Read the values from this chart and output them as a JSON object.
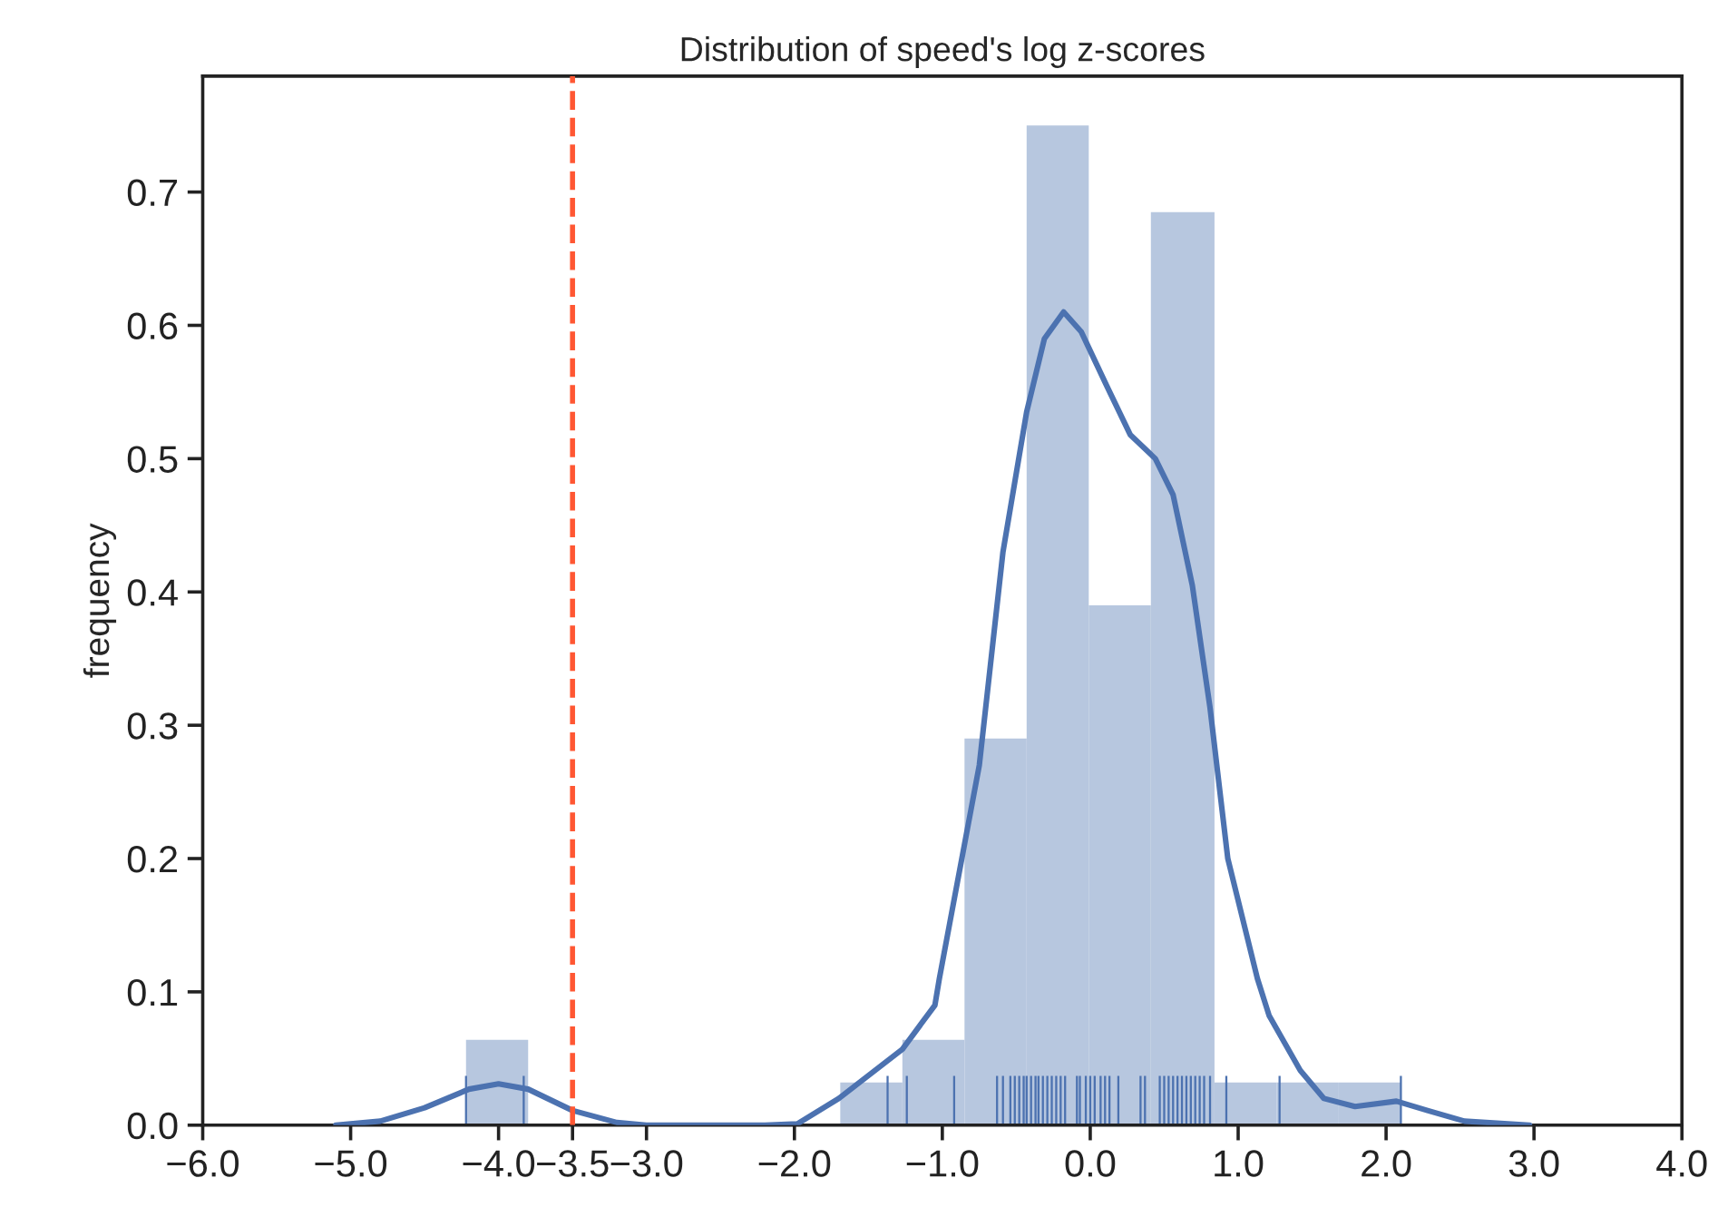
{
  "chart_data": {
    "type": "histogram",
    "title": "Distribution of speed's log z-scores",
    "ylabel": "frequency",
    "bins": [
      -4.22,
      -3.8,
      -1.69,
      -1.27,
      -0.85,
      -0.43,
      -0.01,
      0.41,
      0.84,
      1.26,
      1.68,
      2.1
    ],
    "values": [
      0.064,
      0,
      0.032,
      0.064,
      0.29,
      0.75,
      0.39,
      0.685,
      0.032,
      0.032,
      0.032
    ],
    "color": "#b7c7df",
    "series": [
      {
        "type": "line",
        "color": "#4c72b0",
        "x": [
          -5.1,
          -4.8,
          -4.5,
          -4.2,
          -4.0,
          -3.8,
          -3.5,
          -3.2,
          -3.0,
          -2.2,
          -1.98,
          -1.7,
          -1.27,
          -1.05,
          -1.02,
          -0.75,
          -0.59,
          -0.43,
          -0.31,
          -0.18,
          -0.06,
          0.11,
          0.27,
          0.44,
          0.56,
          0.69,
          0.81,
          0.93,
          1.13,
          1.21,
          1.42,
          1.58,
          1.79,
          2.07,
          2.28,
          2.53,
          2.97
        ],
        "values": [
          0,
          0.003,
          0.013,
          0.027,
          0.031,
          0.027,
          0.011,
          0.002,
          0,
          0,
          0.001,
          0.02,
          0.057,
          0.09,
          0.11,
          0.27,
          0.43,
          0.535,
          0.59,
          0.61,
          0.595,
          0.555,
          0.518,
          0.5,
          0.473,
          0.405,
          0.313,
          0.2,
          0.11,
          0.082,
          0.041,
          0.02,
          0.014,
          0.018,
          0.011,
          0.003,
          0
        ]
      },
      {
        "type": "bar",
        "color": "#4c72b0",
        "x": [
          -4.22,
          -3.83,
          -1.37,
          -1.24,
          -0.92,
          -0.63,
          -0.59,
          -0.54,
          -0.51,
          -0.48,
          -0.45,
          -0.43,
          -0.4,
          -0.37,
          -0.35,
          -0.32,
          -0.29,
          -0.26,
          -0.23,
          -0.2,
          -0.17,
          -0.09,
          -0.07,
          -0.03,
          0.0,
          0.03,
          0.07,
          0.1,
          0.13,
          0.19,
          0.34,
          0.37,
          0.47,
          0.5,
          0.53,
          0.56,
          0.59,
          0.62,
          0.65,
          0.68,
          0.71,
          0.74,
          0.77,
          0.81,
          0.92,
          1.28,
          2.1
        ],
        "values": [
          0.037,
          0.037,
          0.037,
          0.037,
          0.037,
          0.037,
          0.037,
          0.037,
          0.037,
          0.037,
          0.037,
          0.037,
          0.037,
          0.037,
          0.037,
          0.037,
          0.037,
          0.037,
          0.037,
          0.037,
          0.037,
          0.037,
          0.037,
          0.037,
          0.037,
          0.037,
          0.037,
          0.037,
          0.037,
          0.037,
          0.037,
          0.037,
          0.037,
          0.037,
          0.037,
          0.037,
          0.037,
          0.037,
          0.037,
          0.037,
          0.037,
          0.037,
          0.037,
          0.037,
          0.037,
          0.037,
          0.037
        ]
      }
    ],
    "ref_lines": [
      {
        "axis": "x",
        "value": -3.5,
        "color": "#ff5733",
        "line_style": "dashed"
      }
    ],
    "xlim": [
      -6.0,
      4.0
    ],
    "xticks": [
      {
        "value": -6.0,
        "label": "−6.0"
      },
      {
        "value": -5.0,
        "label": "−5.0"
      },
      {
        "value": -4.0,
        "label": "−4.0"
      },
      {
        "value": -3.5,
        "label": "−3.5"
      },
      {
        "value": -3.0,
        "label": "−3.0"
      },
      {
        "value": -2.0,
        "label": "−2.0"
      },
      {
        "value": -1.0,
        "label": "−1.0"
      },
      {
        "value": 0.0,
        "label": "0.0"
      },
      {
        "value": 1.0,
        "label": "1.0"
      },
      {
        "value": 2.0,
        "label": "2.0"
      },
      {
        "value": 3.0,
        "label": "3.0"
      },
      {
        "value": 4.0,
        "label": "4.0"
      }
    ],
    "ylim": [
      0,
      0.787
    ],
    "yticks": [
      {
        "value": 0,
        "label": "0.0"
      },
      0.1,
      0.2,
      0.3,
      0.4,
      0.5,
      0.6,
      0.7
    ],
    "grid": false,
    "legend": false
  }
}
